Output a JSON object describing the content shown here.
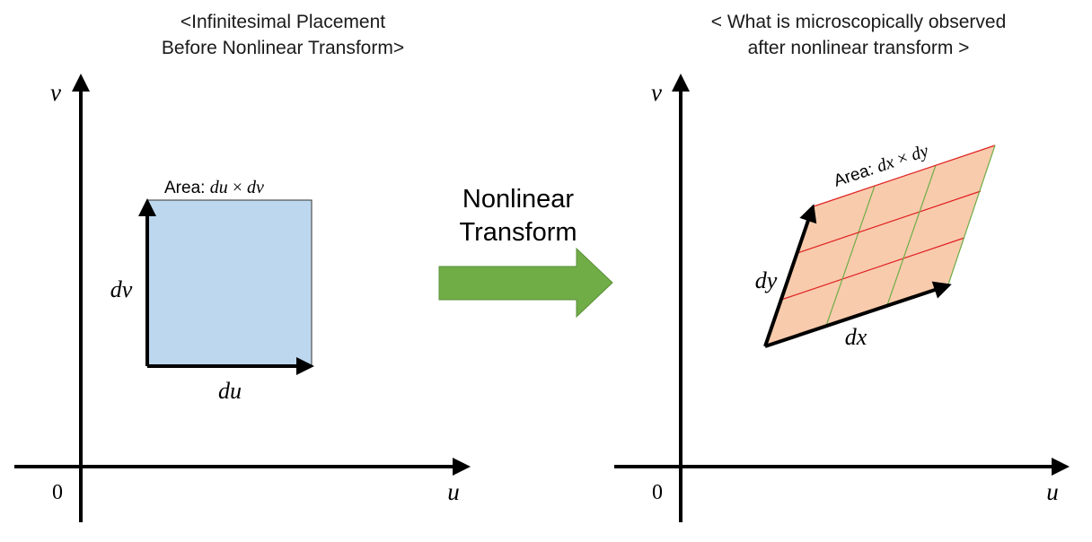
{
  "left_panel": {
    "title_line1": "<Infinitesimal Placement",
    "title_line2": "Before Nonlinear Transform>",
    "origin_label": "0",
    "x_axis_label": "u",
    "y_axis_label": "v",
    "area_prefix": "Area: ",
    "area_expr_a": "du",
    "area_times": "×",
    "area_expr_b": "dv",
    "horizontal_vector_label": "du",
    "vertical_vector_label": "dv"
  },
  "transform_arrow": {
    "line1": "Nonlinear",
    "line2": "Transform",
    "color": "#70ad47"
  },
  "right_panel": {
    "title_line1": "< What is microscopically observed",
    "title_line2": "after nonlinear transform >",
    "origin_label": "0",
    "x_axis_label": "u",
    "y_axis_label": "v",
    "area_prefix": "Area: ",
    "area_expr_a": "dx",
    "area_times": "×",
    "area_expr_b": "dy",
    "vector_x_label": "dx",
    "vector_y_label": "dy",
    "grid_divisions": 3
  },
  "colors": {
    "square_fill": "#bdd7ee",
    "parallelogram_fill": "#f8cbad",
    "grid_red": "#e02020",
    "grid_green": "#70ad47"
  }
}
